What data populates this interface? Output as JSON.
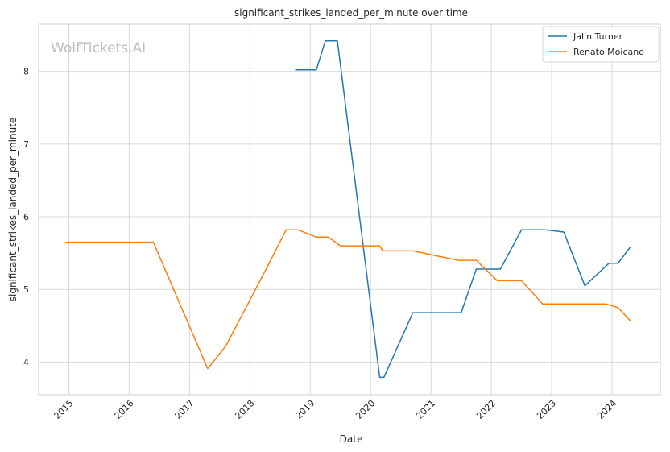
{
  "chart_data": {
    "type": "line",
    "title": "significant_strikes_landed_per_minute over time",
    "xlabel": "Date",
    "ylabel": "significant_strikes_landed_per_minute",
    "watermark": "WolfTickets.AI",
    "xlim": [
      2014.5,
      2024.8
    ],
    "ylim": [
      3.55,
      8.65
    ],
    "x_ticks": [
      2015,
      2016,
      2017,
      2018,
      2019,
      2020,
      2021,
      2022,
      2023,
      2024
    ],
    "x_tick_labels": [
      "2015",
      "2016",
      "2017",
      "2018",
      "2019",
      "2020",
      "2021",
      "2022",
      "2023",
      "2024"
    ],
    "y_ticks": [
      4,
      5,
      6,
      7,
      8
    ],
    "y_tick_labels": [
      "4",
      "5",
      "6",
      "7",
      "8"
    ],
    "grid": true,
    "legend_position": "top-right",
    "series": [
      {
        "name": "Jalin Turner",
        "color": "#1f77b4",
        "points": [
          [
            2018.75,
            8.02
          ],
          [
            2019.1,
            8.02
          ],
          [
            2019.25,
            8.42
          ],
          [
            2019.45,
            8.42
          ],
          [
            2020.15,
            3.79
          ],
          [
            2020.22,
            3.79
          ],
          [
            2020.7,
            4.68
          ],
          [
            2021.5,
            4.68
          ],
          [
            2021.75,
            5.28
          ],
          [
            2022.15,
            5.28
          ],
          [
            2022.5,
            5.82
          ],
          [
            2022.9,
            5.82
          ],
          [
            2023.2,
            5.79
          ],
          [
            2023.55,
            5.05
          ],
          [
            2023.95,
            5.36
          ],
          [
            2024.1,
            5.36
          ],
          [
            2024.3,
            5.58
          ]
        ]
      },
      {
        "name": "Renato Moicano",
        "color": "#ff7f0e",
        "points": [
          [
            2014.95,
            5.65
          ],
          [
            2016.4,
            5.65
          ],
          [
            2017.3,
            3.91
          ],
          [
            2017.6,
            4.22
          ],
          [
            2018.25,
            5.25
          ],
          [
            2018.6,
            5.82
          ],
          [
            2018.8,
            5.82
          ],
          [
            2019.1,
            5.72
          ],
          [
            2019.3,
            5.72
          ],
          [
            2019.5,
            5.6
          ],
          [
            2020.15,
            5.6
          ],
          [
            2020.2,
            5.53
          ],
          [
            2020.7,
            5.53
          ],
          [
            2021.45,
            5.4
          ],
          [
            2021.75,
            5.4
          ],
          [
            2022.1,
            5.12
          ],
          [
            2022.5,
            5.12
          ],
          [
            2022.85,
            4.8
          ],
          [
            2023.9,
            4.8
          ],
          [
            2024.1,
            4.75
          ],
          [
            2024.3,
            4.57
          ]
        ]
      }
    ]
  }
}
